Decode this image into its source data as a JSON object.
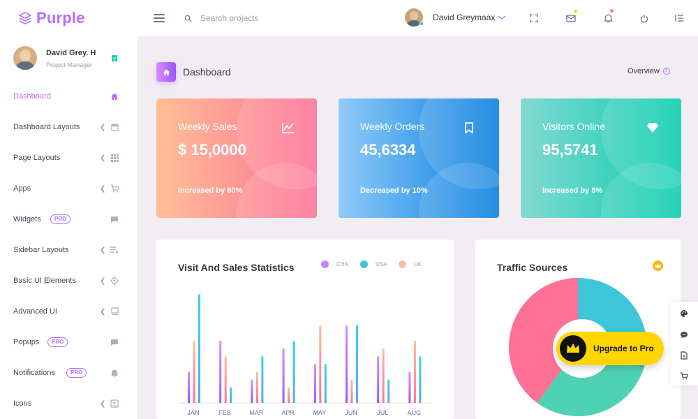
{
  "brand": {
    "name": "Purple"
  },
  "navbar": {
    "search_placeholder": "Search projects",
    "user_name": "David Greymaax"
  },
  "sidebar": {
    "profile": {
      "name": "David Grey. H",
      "role": "Project Manager"
    },
    "items": [
      {
        "label": "Dashboard",
        "icon": "home-icon",
        "active": true
      },
      {
        "label": "Dashboard Layouts",
        "icon": "window-icon"
      },
      {
        "label": "Page Layouts",
        "icon": "grid-icon"
      },
      {
        "label": "Apps",
        "icon": "cart-icon"
      },
      {
        "label": "Widgets",
        "icon": "chat-icon",
        "badge": "PRO"
      },
      {
        "label": "Sidebar Layouts",
        "icon": "playlist-icon"
      },
      {
        "label": "Basic UI Elements",
        "icon": "crosshair-icon"
      },
      {
        "label": "Advanced UI",
        "icon": "monitor-icon"
      },
      {
        "label": "Popups",
        "icon": "chat-icon",
        "badge": "PRO"
      },
      {
        "label": "Notifications",
        "icon": "bell-icon",
        "badge": "PRO"
      },
      {
        "label": "Icons",
        "icon": "contact-icon"
      }
    ]
  },
  "page": {
    "title": "Dashboard",
    "overview": "Overview"
  },
  "cards": [
    {
      "title": "Weekly Sales",
      "value": "$ 15,0000",
      "sub": "Increased by 60%",
      "icon": "chart-line-icon"
    },
    {
      "title": "Weekly Orders",
      "value": "45,6334",
      "sub": "Decreased by 10%",
      "icon": "bookmark-icon"
    },
    {
      "title": "Visitors Online",
      "value": "95,5741",
      "sub": "Increased by 5%",
      "icon": "diamond-icon"
    }
  ],
  "stats_panel": {
    "title": "Visit And Sales Statistics"
  },
  "traffic_panel": {
    "title": "Traffic Sources"
  },
  "upgrade": {
    "label": "Upgrade to Pro"
  },
  "colors": {
    "accent": "#b66dff",
    "chn": "#9a55ff",
    "usa": "#3ec6d8",
    "uk": "#f6a584"
  },
  "chart_data": [
    {
      "type": "bar",
      "categories": [
        "JAN",
        "FEB",
        "MAR",
        "APR",
        "MAY",
        "JUN",
        "JUL",
        "AUG"
      ],
      "series": [
        {
          "name": "CHN",
          "values": [
            20,
            40,
            15,
            35,
            25,
            50,
            30,
            20
          ]
        },
        {
          "name": "UK",
          "values": [
            40,
            30,
            20,
            10,
            50,
            15,
            35,
            40
          ]
        },
        {
          "name": "USA",
          "values": [
            70,
            10,
            30,
            40,
            25,
            50,
            15,
            30
          ]
        }
      ],
      "title": "Visit And Sales Statistics",
      "xlabel": "",
      "ylabel": "",
      "ylim": [
        0,
        72
      ],
      "legend": "top-right",
      "grid": false
    },
    {
      "type": "pie",
      "categories": [
        "",
        "",
        ""
      ],
      "values": [
        30,
        30,
        40
      ],
      "colors": [
        "#3ec6d8",
        "#4fd1b4",
        "#fe7096"
      ],
      "title": "Traffic Sources",
      "legend": "none"
    }
  ]
}
